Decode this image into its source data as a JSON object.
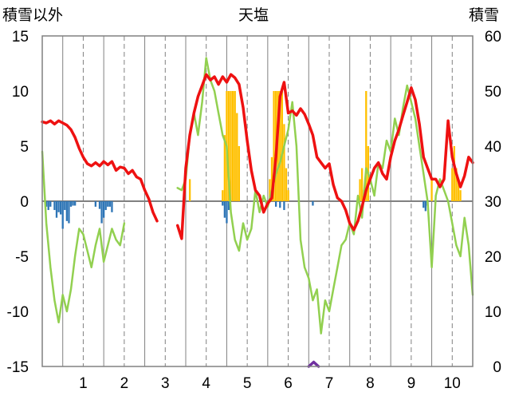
{
  "chart_data": {
    "type": "bar+line",
    "title": "天塩",
    "ylabel_left": "積雪以外",
    "ylabel_right": "積雪",
    "left_axis": {
      "ylim": [
        -15,
        15
      ],
      "ticks": [
        15,
        10,
        5,
        0,
        -5,
        -10,
        -15
      ]
    },
    "right_axis": {
      "ylim": [
        0,
        60
      ],
      "ticks": [
        60,
        50,
        40,
        30,
        20,
        10,
        0
      ]
    },
    "x_months": [
      "1",
      "2",
      "3",
      "4",
      "5",
      "6",
      "7",
      "8",
      "9",
      "10"
    ],
    "grid": "dashed vertical at mid-month, solid vertical at month boundaries, solid zero line",
    "colors": {
      "red_line": "#ee1111",
      "green_line": "#92d050",
      "orange_bars": "#ffc000",
      "blue_bars": "#2e75b6",
      "purple_line": "#7030a0",
      "grid": "#808080"
    },
    "red_series": [
      [
        0.0,
        7.2
      ],
      [
        0.1,
        7.1
      ],
      [
        0.2,
        7.3
      ],
      [
        0.3,
        7.0
      ],
      [
        0.4,
        7.3
      ],
      [
        0.5,
        7.1
      ],
      [
        0.6,
        6.9
      ],
      [
        0.7,
        6.5
      ],
      [
        0.8,
        5.8
      ],
      [
        0.9,
        4.8
      ],
      [
        1.0,
        4.0
      ],
      [
        1.1,
        3.4
      ],
      [
        1.2,
        3.2
      ],
      [
        1.3,
        3.5
      ],
      [
        1.4,
        3.2
      ],
      [
        1.5,
        3.6
      ],
      [
        1.6,
        3.3
      ],
      [
        1.7,
        3.6
      ],
      [
        1.8,
        2.8
      ],
      [
        1.9,
        3.1
      ],
      [
        2.0,
        3.0
      ],
      [
        2.1,
        2.5
      ],
      [
        2.2,
        2.8
      ],
      [
        2.3,
        2.2
      ],
      [
        2.4,
        2.0
      ],
      [
        2.5,
        1.0
      ],
      [
        2.6,
        0.2
      ],
      [
        2.7,
        -1.0
      ],
      [
        2.8,
        -1.8
      ],
      [
        3.3,
        -2.2
      ],
      [
        3.4,
        -3.4
      ],
      [
        3.5,
        3.0
      ],
      [
        3.6,
        6.0
      ],
      [
        3.7,
        8.0
      ],
      [
        3.8,
        9.5
      ],
      [
        3.9,
        10.5
      ],
      [
        4.0,
        11.5
      ],
      [
        4.1,
        11.0
      ],
      [
        4.2,
        11.3
      ],
      [
        4.3,
        10.6
      ],
      [
        4.4,
        11.3
      ],
      [
        4.5,
        10.8
      ],
      [
        4.6,
        11.5
      ],
      [
        4.7,
        11.2
      ],
      [
        4.8,
        10.6
      ],
      [
        4.9,
        8.5
      ],
      [
        5.0,
        5.5
      ],
      [
        5.1,
        2.8
      ],
      [
        5.2,
        1.0
      ],
      [
        5.3,
        0.5
      ],
      [
        5.4,
        -1.0
      ],
      [
        5.5,
        -0.2
      ],
      [
        5.6,
        0.3
      ],
      [
        5.7,
        4.0
      ],
      [
        5.8,
        9.5
      ],
      [
        5.9,
        10.8
      ],
      [
        6.0,
        8.0
      ],
      [
        6.1,
        8.2
      ],
      [
        6.2,
        7.8
      ],
      [
        6.3,
        8.4
      ],
      [
        6.4,
        7.9
      ],
      [
        6.5,
        7.0
      ],
      [
        6.6,
        6.0
      ],
      [
        6.7,
        4.0
      ],
      [
        6.8,
        3.5
      ],
      [
        6.9,
        3.0
      ],
      [
        7.0,
        3.4
      ],
      [
        7.1,
        1.5
      ],
      [
        7.2,
        0.3
      ],
      [
        7.3,
        0.0
      ],
      [
        7.4,
        -0.8
      ],
      [
        7.5,
        -2.0
      ],
      [
        7.6,
        -2.6
      ],
      [
        7.7,
        -1.8
      ],
      [
        7.8,
        -0.5
      ],
      [
        7.9,
        1.0
      ],
      [
        8.0,
        2.0
      ],
      [
        8.1,
        3.0
      ],
      [
        8.2,
        3.5
      ],
      [
        8.3,
        2.5
      ],
      [
        8.4,
        2.0
      ],
      [
        8.5,
        4.0
      ],
      [
        8.6,
        5.5
      ],
      [
        8.7,
        6.5
      ],
      [
        8.8,
        7.8
      ],
      [
        8.9,
        9.0
      ],
      [
        9.0,
        10.3
      ],
      [
        9.1,
        9.2
      ],
      [
        9.2,
        7.0
      ],
      [
        9.3,
        4.0
      ],
      [
        9.4,
        3.0
      ],
      [
        9.5,
        2.0
      ],
      [
        9.6,
        2.0
      ],
      [
        9.7,
        1.3
      ],
      [
        9.8,
        2.0
      ],
      [
        9.9,
        7.3
      ],
      [
        10.0,
        4.0
      ],
      [
        10.1,
        2.5
      ],
      [
        10.2,
        1.3
      ],
      [
        10.3,
        2.3
      ],
      [
        10.4,
        4.0
      ],
      [
        10.5,
        3.5
      ]
    ],
    "green_series": [
      [
        0.0,
        4.5
      ],
      [
        0.1,
        -2.0
      ],
      [
        0.2,
        -6.0
      ],
      [
        0.3,
        -9.0
      ],
      [
        0.4,
        -11.0
      ],
      [
        0.5,
        -8.5
      ],
      [
        0.6,
        -10.0
      ],
      [
        0.7,
        -8.0
      ],
      [
        0.8,
        -5.0
      ],
      [
        0.9,
        -2.5
      ],
      [
        1.0,
        -3.0
      ],
      [
        1.1,
        -4.5
      ],
      [
        1.2,
        -6.0
      ],
      [
        1.3,
        -4.0
      ],
      [
        1.4,
        -2.5
      ],
      [
        1.5,
        -5.5
      ],
      [
        1.6,
        -4.0
      ],
      [
        1.7,
        -2.5
      ],
      [
        1.8,
        -3.5
      ],
      [
        1.9,
        -4.0
      ],
      [
        2.0,
        -2.0
      ],
      [
        3.3,
        1.2
      ],
      [
        3.4,
        1.0
      ],
      [
        3.5,
        2.0
      ],
      [
        3.6,
        6.0
      ],
      [
        3.7,
        8.0
      ],
      [
        3.8,
        6.0
      ],
      [
        3.9,
        9.0
      ],
      [
        4.0,
        13.0
      ],
      [
        4.1,
        11.0
      ],
      [
        4.2,
        10.0
      ],
      [
        4.3,
        8.0
      ],
      [
        4.4,
        6.0
      ],
      [
        4.5,
        5.0
      ],
      [
        4.6,
        -1.0
      ],
      [
        4.7,
        -3.5
      ],
      [
        4.8,
        -4.5
      ],
      [
        4.9,
        -2.0
      ],
      [
        5.0,
        -3.5
      ],
      [
        5.1,
        -2.5
      ],
      [
        5.2,
        1.0
      ],
      [
        5.3,
        -1.0
      ],
      [
        5.4,
        0.5
      ],
      [
        5.5,
        -0.5
      ],
      [
        5.6,
        1.0
      ],
      [
        5.7,
        2.5
      ],
      [
        5.8,
        3.5
      ],
      [
        5.9,
        5.0
      ],
      [
        6.0,
        6.5
      ],
      [
        6.1,
        9.0
      ],
      [
        6.2,
        5.0
      ],
      [
        6.3,
        -3.5
      ],
      [
        6.4,
        -6.0
      ],
      [
        6.5,
        -7.0
      ],
      [
        6.6,
        -9.0
      ],
      [
        6.7,
        -8.0
      ],
      [
        6.8,
        -12.0
      ],
      [
        6.9,
        -9.0
      ],
      [
        7.0,
        -10.0
      ],
      [
        7.1,
        -8.0
      ],
      [
        7.2,
        -6.0
      ],
      [
        7.3,
        -4.0
      ],
      [
        7.4,
        -3.5
      ],
      [
        7.5,
        -2.0
      ],
      [
        7.6,
        -3.0
      ],
      [
        7.7,
        0.5
      ],
      [
        7.8,
        -1.5
      ],
      [
        7.9,
        3.0
      ],
      [
        8.0,
        2.0
      ],
      [
        8.1,
        0.5
      ],
      [
        8.2,
        3.5
      ],
      [
        8.3,
        3.0
      ],
      [
        8.4,
        5.5
      ],
      [
        8.5,
        4.5
      ],
      [
        8.6,
        7.5
      ],
      [
        8.7,
        6.0
      ],
      [
        8.8,
        8.5
      ],
      [
        8.9,
        10.5
      ],
      [
        9.0,
        9.0
      ],
      [
        9.1,
        7.5
      ],
      [
        9.2,
        5.0
      ],
      [
        9.3,
        2.5
      ],
      [
        9.4,
        0.0
      ],
      [
        9.5,
        -6.0
      ],
      [
        9.6,
        0.5
      ],
      [
        9.7,
        2.0
      ],
      [
        9.8,
        1.0
      ],
      [
        9.9,
        0.0
      ],
      [
        10.0,
        -2.0
      ],
      [
        10.1,
        -4.0
      ],
      [
        10.2,
        -5.0
      ],
      [
        10.3,
        -1.5
      ],
      [
        10.4,
        -4.0
      ],
      [
        10.5,
        -8.5
      ]
    ],
    "purple_series": [
      [
        0.0,
        0.0
      ],
      [
        6.5,
        0.0
      ],
      [
        6.62,
        0.8
      ],
      [
        6.74,
        0.0
      ],
      [
        10.5,
        0.0
      ]
    ],
    "orange_bars": [
      [
        3.6,
        2.0
      ],
      [
        4.4,
        1.0
      ],
      [
        4.45,
        6.0
      ],
      [
        4.5,
        10.0
      ],
      [
        4.55,
        10.0
      ],
      [
        4.6,
        10.0
      ],
      [
        4.65,
        10.0
      ],
      [
        4.7,
        10.0
      ],
      [
        4.75,
        8.0
      ],
      [
        4.8,
        5.0
      ],
      [
        5.55,
        2.0
      ],
      [
        5.6,
        4.0
      ],
      [
        5.65,
        10.0
      ],
      [
        5.7,
        10.0
      ],
      [
        5.75,
        10.0
      ],
      [
        5.8,
        10.0
      ],
      [
        5.85,
        10.0
      ],
      [
        5.9,
        7.0
      ],
      [
        5.95,
        3.0
      ],
      [
        6.0,
        1.0
      ],
      [
        7.75,
        2.0
      ],
      [
        7.8,
        3.0
      ],
      [
        7.85,
        1.0
      ],
      [
        7.9,
        10.0
      ],
      [
        7.95,
        5.0
      ],
      [
        9.5,
        2.0
      ],
      [
        10.0,
        3.0
      ],
      [
        10.05,
        5.0
      ],
      [
        10.1,
        3.0
      ],
      [
        10.15,
        2.0
      ],
      [
        10.2,
        1.0
      ]
    ],
    "blue_bars": [
      [
        0.1,
        -0.5
      ],
      [
        0.15,
        -0.8
      ],
      [
        0.2,
        -0.5
      ],
      [
        0.3,
        -0.8
      ],
      [
        0.35,
        -1.5
      ],
      [
        0.4,
        -1.0
      ],
      [
        0.45,
        -1.2
      ],
      [
        0.5,
        -2.5
      ],
      [
        0.55,
        -0.8
      ],
      [
        0.6,
        -1.8
      ],
      [
        0.65,
        -2.0
      ],
      [
        0.7,
        -0.5
      ],
      [
        0.75,
        -0.4
      ],
      [
        0.8,
        -0.4
      ],
      [
        1.3,
        -0.5
      ],
      [
        1.4,
        -0.7
      ],
      [
        1.45,
        -2.0
      ],
      [
        1.5,
        -1.5
      ],
      [
        1.55,
        -0.8
      ],
      [
        1.6,
        -0.5
      ],
      [
        1.65,
        -0.5
      ],
      [
        1.7,
        -1.0
      ],
      [
        4.4,
        -0.4
      ],
      [
        4.45,
        -1.5
      ],
      [
        4.5,
        -2.0
      ],
      [
        4.55,
        -0.8
      ],
      [
        5.7,
        -0.5
      ],
      [
        5.8,
        -0.6
      ],
      [
        5.9,
        -0.8
      ],
      [
        6.6,
        -0.4
      ],
      [
        9.3,
        -0.6
      ],
      [
        9.35,
        -0.9
      ],
      [
        9.4,
        -0.4
      ]
    ]
  }
}
